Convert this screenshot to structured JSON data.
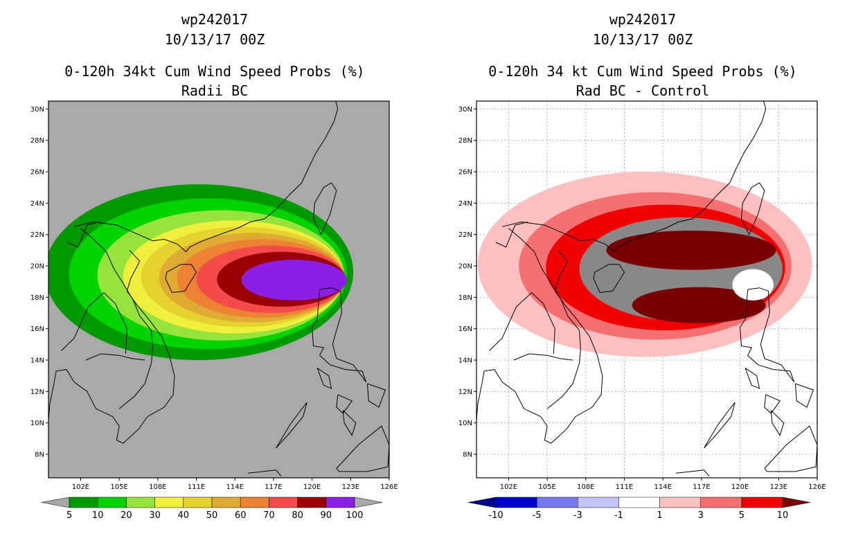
{
  "chart_data": [
    {
      "type": "heatmap",
      "storm_id": "wp242017",
      "datetime": "10/13/17 00Z",
      "title": "0-120h 34kt Cum Wind Speed Probs (%)",
      "subtitle": "Radii BC",
      "background": "#a9a9a9",
      "xlim": [
        99.5,
        126
      ],
      "ylim": [
        6.5,
        30.5
      ],
      "lon_ticks": [
        "102E",
        "105E",
        "108E",
        "111E",
        "114E",
        "117E",
        "120E",
        "123E",
        "126E"
      ],
      "lat_ticks": [
        "8N",
        "10N",
        "12N",
        "14N",
        "16N",
        "18N",
        "20N",
        "22N",
        "24N",
        "26N",
        "28N",
        "30N"
      ],
      "grid": false,
      "colorbar": {
        "labels": [
          "5",
          "10",
          "20",
          "30",
          "40",
          "50",
          "60",
          "70",
          "80",
          "90",
          "100"
        ],
        "colors": [
          "#009a00",
          "#00d400",
          "#96e33b",
          "#f0f03c",
          "#e6d22e",
          "#e0ab33",
          "#ec8232",
          "#f54a4a",
          "#9b0000",
          "#8c1ee6"
        ],
        "end_colors": [
          "#a9a9a9",
          "#a9a9a9"
        ]
      },
      "levels": [
        {
          "value": 5,
          "center": [
            111.2,
            19.6
          ],
          "rx": 12.0,
          "ry": 5.6
        },
        {
          "value": 10,
          "center": [
            111.9,
            19.5
          ],
          "rx": 10.8,
          "ry": 4.8
        },
        {
          "value": 20,
          "center": [
            112.9,
            19.4
          ],
          "rx": 9.6,
          "ry": 4.15
        },
        {
          "value": 30,
          "center": [
            113.9,
            19.3
          ],
          "rx": 8.6,
          "ry": 3.6
        },
        {
          "value": 40,
          "center": [
            114.6,
            19.3
          ],
          "rx": 7.9,
          "ry": 3.2
        },
        {
          "value": 50,
          "center": [
            115.3,
            19.25
          ],
          "rx": 7.2,
          "ry": 2.85
        },
        {
          "value": 60,
          "center": [
            116.0,
            19.2
          ],
          "rx": 6.5,
          "ry": 2.5
        },
        {
          "value": 70,
          "center": [
            116.8,
            19.15
          ],
          "rx": 5.8,
          "ry": 2.15
        },
        {
          "value": 80,
          "center": [
            117.6,
            19.15
          ],
          "rx": 5.0,
          "ry": 1.75
        },
        {
          "value": 90,
          "center": [
            118.6,
            19.1
          ],
          "rx": 4.1,
          "ry": 1.3
        }
      ]
    },
    {
      "type": "heatmap",
      "storm_id": "wp242017",
      "datetime": "10/13/17 00Z",
      "title": "0-120h 34 kt Cum Wind Speed Probs (%)",
      "subtitle": "Rad BC - Control",
      "background": "#ffffff",
      "xlim": [
        99.5,
        126
      ],
      "ylim": [
        6.5,
        30.5
      ],
      "lon_ticks": [
        "102E",
        "105E",
        "108E",
        "111E",
        "114E",
        "117E",
        "120E",
        "123E",
        "126E"
      ],
      "lat_ticks": [
        "8N",
        "10N",
        "12N",
        "14N",
        "16N",
        "18N",
        "20N",
        "22N",
        "24N",
        "26N",
        "28N",
        "30N"
      ],
      "grid": true,
      "colorbar": {
        "labels": [
          "-10",
          "-5",
          "-3",
          "-1",
          "1",
          "3",
          "5",
          "10"
        ],
        "colors": [
          "#0000d2",
          "#7878f0",
          "#c4c4f8",
          "#ffffff",
          "#fcc0c0",
          "#f57070",
          "#f00000"
        ],
        "end_colors": [
          "#00008c",
          "#780000"
        ]
      },
      "levels": [
        {
          "value": 1,
          "center": [
            112.6,
            20.1
          ],
          "rx": 13.0,
          "ry": 5.9
        },
        {
          "value": 3,
          "center": [
            113.4,
            20.0
          ],
          "rx": 10.6,
          "ry": 4.7
        },
        {
          "value": 5,
          "center": [
            114.2,
            19.9
          ],
          "rx": 9.3,
          "ry": 4.0
        },
        {
          "value": 10,
          "center": [
            115.4,
            19.8
          ],
          "rx": 7.9,
          "ry": 3.3
        }
      ],
      "maxima": [
        {
          "value": 10,
          "center": [
            116.2,
            21.0
          ],
          "rx": 6.6,
          "ry": 1.25
        },
        {
          "value": 10,
          "center": [
            116.8,
            17.5
          ],
          "rx": 5.2,
          "ry": 1.15
        }
      ],
      "minimum_pocket": {
        "value": -1,
        "center": [
          121.0,
          18.8
        ],
        "rx": 1.6,
        "ry": 1.0
      }
    }
  ]
}
